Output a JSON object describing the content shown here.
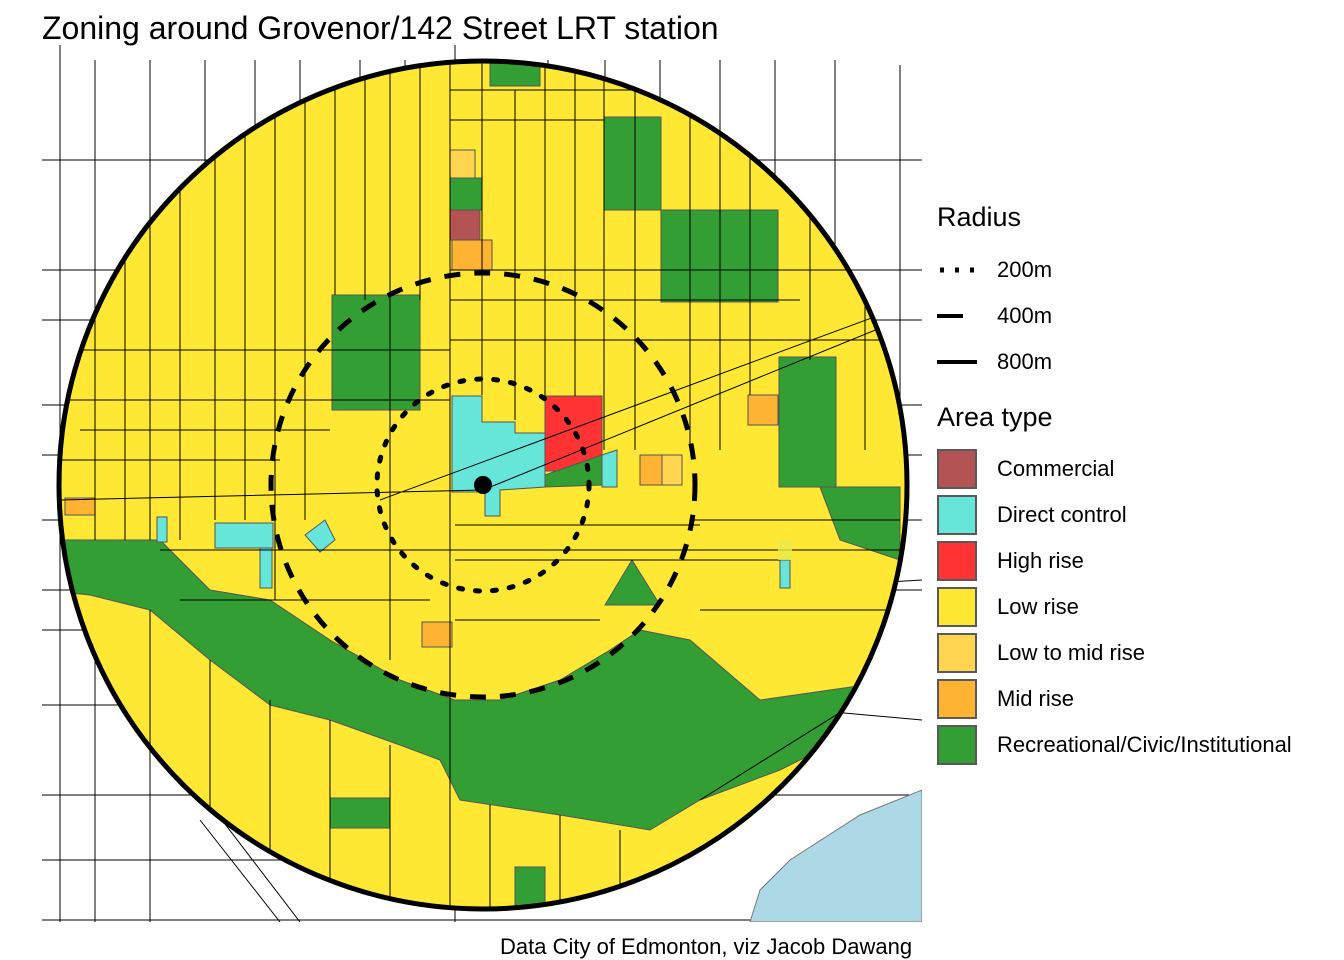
{
  "title": "Zoning around Grovenor/142 Street LRT station",
  "caption": "Data City of Edmonton, viz Jacob Dawang",
  "legend": {
    "radius": {
      "title": "Radius",
      "items": [
        {
          "label": "200m",
          "style": "dotted"
        },
        {
          "label": "400m",
          "style": "dashed"
        },
        {
          "label": "800m",
          "style": "solid"
        }
      ]
    },
    "area_type": {
      "title": "Area type",
      "items": [
        {
          "label": "Commercial",
          "color": "#B35353"
        },
        {
          "label": "Direct control",
          "color": "#66E5D9"
        },
        {
          "label": "High rise",
          "color": "#FF3333"
        },
        {
          "label": "Low rise",
          "color": "#FFE833"
        },
        {
          "label": "Low to mid rise",
          "color": "#FFD54F"
        },
        {
          "label": "Mid rise",
          "color": "#FFB332"
        },
        {
          "label": "Recreational/Civic/Institutional",
          "color": "#339E33"
        }
      ]
    }
  },
  "water_color": "#ADD8E6"
}
